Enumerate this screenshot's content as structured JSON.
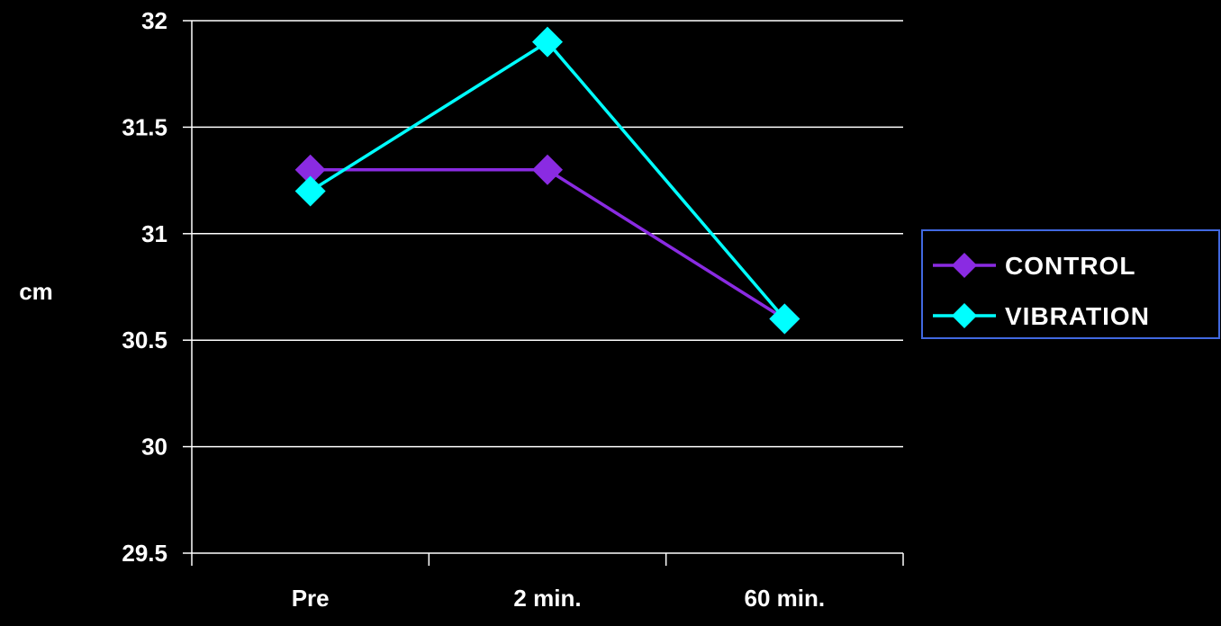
{
  "chart_data": {
    "type": "line",
    "categories": [
      "Pre",
      "2 min.",
      "60 min."
    ],
    "series": [
      {
        "name": "CONTROL",
        "values": [
          31.3,
          31.3,
          30.6
        ],
        "color": "#8a2be2"
      },
      {
        "name": "VIBRATION",
        "values": [
          31.2,
          31.9,
          30.6
        ],
        "color": "#00ffff"
      }
    ],
    "ylabel": "cm",
    "ylim": [
      29.5,
      32
    ],
    "yticks": [
      29.5,
      30,
      30.5,
      31,
      31.5,
      32
    ],
    "ytick_labels": [
      "29.5",
      "30",
      "30.5",
      "31",
      "31.5",
      "32"
    ],
    "grid": true,
    "legend_position": "right",
    "marker": "diamond",
    "background": "#000000",
    "legend_border_color": "#4169e1"
  }
}
